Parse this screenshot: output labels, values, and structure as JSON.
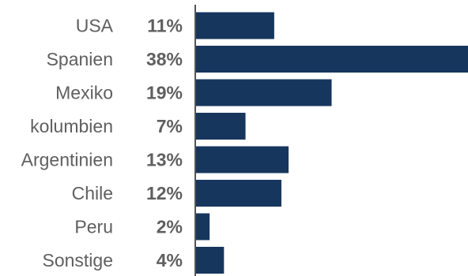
{
  "chart_data": {
    "type": "bar",
    "orientation": "horizontal",
    "categories": [
      "USA",
      "Spanien",
      "Mexiko",
      "kolumbien",
      "Argentinien",
      "Chile",
      "Peru",
      "Sonstige"
    ],
    "values": [
      11,
      38,
      19,
      7,
      13,
      12,
      2,
      4
    ],
    "value_labels": [
      "11%",
      "38%",
      "19%",
      "7%",
      "13%",
      "12%",
      "2%",
      "4%"
    ],
    "xlim": [
      0,
      38
    ],
    "grid": false,
    "legend": "none",
    "bar_color": "#17365d",
    "axis_color": "#555555"
  }
}
